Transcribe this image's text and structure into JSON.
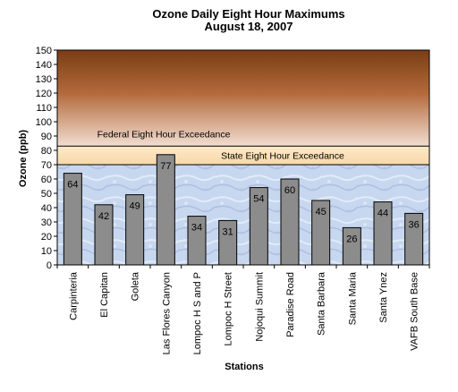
{
  "chart_data": {
    "type": "bar",
    "title": "Ozone Daily Eight Hour Maximums",
    "subtitle": "August 18, 2007",
    "xlabel": "Stations",
    "ylabel": "Ozone (ppb)",
    "ylim": [
      0,
      150
    ],
    "yticks": [
      "0",
      "10",
      "20",
      "30",
      "40",
      "50",
      "60",
      "70",
      "80",
      "90",
      "100",
      "110",
      "120",
      "130",
      "140",
      "150"
    ],
    "categories": [
      "Carpinteria",
      "El Capitan",
      "Goleta",
      "Las Flores Canyon",
      "Lompoc H S and P",
      "Lompoc H Street",
      "Nojoqui Summit",
      "Paradise Road",
      "Santa Barbara",
      "Santa Maria",
      "Santa Ynez",
      "VAFB South Base"
    ],
    "values": [
      64,
      42,
      49,
      77,
      34,
      31,
      54,
      60,
      45,
      26,
      44,
      36
    ],
    "data_labels": [
      "64",
      "42",
      "49",
      "77",
      "34",
      "31",
      "54",
      "60",
      "45",
      "26",
      "44",
      "36"
    ],
    "thresholds": [
      {
        "label": "State Eight Hour Exceedance",
        "from": 70,
        "to": 83
      },
      {
        "label": "Federal Eight Hour Exceedance",
        "from": 83,
        "to": 150
      }
    ],
    "colors": {
      "bar_fill": "#8c8c8c",
      "bar_stroke": "#000000",
      "federal_top": "#7a3d14",
      "federal_bottom": "#f2ddd0",
      "state_band": "#fbe7c6",
      "plot_background": "#c8d8f0"
    },
    "grid": false,
    "legend": "none"
  }
}
